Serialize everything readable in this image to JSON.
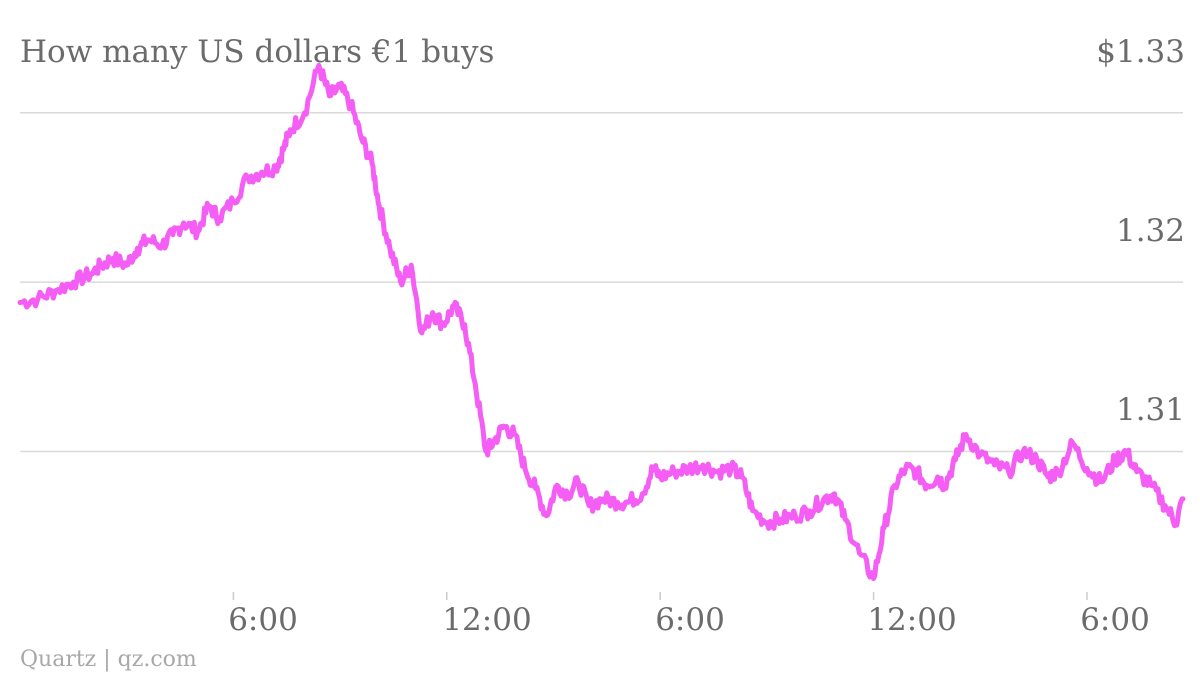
{
  "chart_data": {
    "type": "line",
    "title": "How many US dollars €1 buys",
    "xlabel": "",
    "ylabel": "",
    "x_tick_labels": [
      "6:00",
      "12:00",
      "6:00",
      "12:00",
      "6:00"
    ],
    "x_tick_hours": [
      6,
      12,
      18,
      24,
      30
    ],
    "y_tick_labels": [
      "$1.33",
      "1.32",
      "1.31"
    ],
    "y_tick_values": [
      1.33,
      1.32,
      1.31
    ],
    "xlim": [
      0,
      32.7
    ],
    "ylim": [
      1.3017,
      1.3343
    ],
    "grid": true,
    "line_color": "#f45ef4",
    "series": [
      {
        "x_hours": [
          0.0,
          0.5,
          1.0,
          1.5,
          2.0,
          2.3,
          2.6,
          3.0,
          3.3,
          3.6,
          4.0,
          4.3,
          4.6,
          5.0,
          5.3,
          5.6,
          6.0,
          6.4,
          6.8,
          7.2,
          7.4,
          7.6,
          8.0,
          8.4,
          8.7,
          9.0,
          9.3,
          9.6,
          9.9,
          10.1,
          10.4,
          10.7,
          11.0,
          11.3,
          11.6,
          11.9,
          12.2,
          12.5,
          12.8,
          13.1,
          13.3,
          13.6,
          13.9,
          14.2,
          14.5,
          14.8,
          15.1,
          15.4,
          15.7,
          16.0,
          16.4,
          16.8,
          17.1,
          17.5,
          17.8,
          18.0,
          18.4,
          18.8,
          19.2,
          19.6,
          20.0,
          20.3,
          20.6,
          21.0,
          21.4,
          21.8,
          22.2,
          22.6,
          22.9,
          23.2,
          23.6,
          24.0,
          24.3,
          24.6,
          24.9,
          25.2,
          25.5,
          25.8,
          26.0,
          26.3,
          26.6,
          27.0,
          27.4,
          27.8,
          28.2,
          28.6,
          28.9,
          29.2,
          29.6,
          30.0,
          30.4,
          30.8,
          31.1,
          31.4,
          31.8,
          32.2,
          32.5,
          32.7
        ],
        "values": [
          1.3188,
          1.319,
          1.3195,
          1.32,
          1.3205,
          1.321,
          1.3214,
          1.321,
          1.322,
          1.3225,
          1.3222,
          1.3228,
          1.3235,
          1.323,
          1.3245,
          1.3238,
          1.3248,
          1.3262,
          1.3265,
          1.3268,
          1.3278,
          1.329,
          1.33,
          1.3328,
          1.331,
          1.3315,
          1.3305,
          1.3285,
          1.327,
          1.3245,
          1.322,
          1.32,
          1.321,
          1.317,
          1.3182,
          1.3175,
          1.3186,
          1.3175,
          1.314,
          1.31,
          1.3105,
          1.3115,
          1.311,
          1.309,
          1.3078,
          1.3062,
          1.308,
          1.3075,
          1.3082,
          1.3068,
          1.3072,
          1.307,
          1.307,
          1.3075,
          1.309,
          1.3085,
          1.3088,
          1.309,
          1.3092,
          1.3088,
          1.309,
          1.3085,
          1.3065,
          1.3058,
          1.306,
          1.3062,
          1.3065,
          1.3072,
          1.3075,
          1.306,
          1.304,
          1.3025,
          1.3055,
          1.308,
          1.309,
          1.3088,
          1.308,
          1.3085,
          1.308,
          1.3095,
          1.311,
          1.3098,
          1.3092,
          1.3088,
          1.31,
          1.3095,
          1.3085,
          1.3088,
          1.3105,
          1.309,
          1.3082,
          1.3095,
          1.31,
          1.3088,
          1.308,
          1.3068,
          1.3058,
          1.3072
        ]
      }
    ]
  },
  "credit": "Quartz | qz.com"
}
